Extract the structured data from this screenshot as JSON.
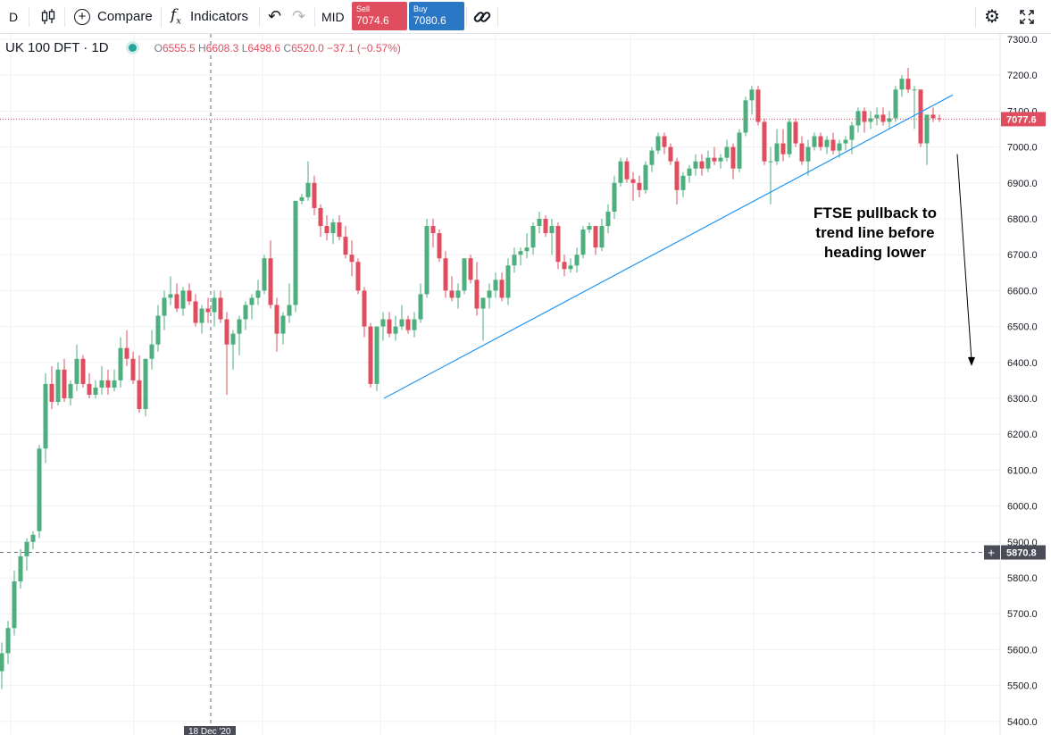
{
  "toolbar": {
    "interval": "D",
    "compare_label": "Compare",
    "indicators_label": "Indicators",
    "mid_label": "MID",
    "sell_label": "Sell",
    "sell_price": "7074.6",
    "buy_label": "Buy",
    "buy_price": "7080.6",
    "icons": [
      "candles-icon",
      "compare-plus-icon",
      "fx-icon",
      "undo-icon",
      "redo-icon",
      "link-icon",
      "settings-icon",
      "fullscreen-icon"
    ]
  },
  "legend": {
    "symbol": "UK 100 DFT · 1D",
    "open_key": "O",
    "open": "6555.5",
    "high_key": "H",
    "high": "6608.3",
    "low_key": "L",
    "low": "6498.6",
    "close_key": "C",
    "close": "6520.0",
    "change": "−37.1 (−0.57%)"
  },
  "annotation": {
    "line1": "FTSE pullback to",
    "line2": "trend line before",
    "line3": "heading lower"
  },
  "colors": {
    "up": "#4caf7d",
    "down": "#e04d5e",
    "trendline": "#2196f3",
    "price_line": "#e04d5e"
  },
  "chart_data": {
    "type": "candlestick",
    "symbol": "UK 100 DFT",
    "interval": "1D",
    "y_ticks": [
      "7300.0",
      "7200.0",
      "7100.0",
      "7000.0",
      "6900.0",
      "6800.0",
      "6700.0",
      "6600.0",
      "6500.0",
      "6400.0",
      "6300.0",
      "6200.0",
      "6100.0",
      "6000.0",
      "5900.0",
      "5800.0",
      "5700.0",
      "5600.0",
      "5500.0",
      "5400.0"
    ],
    "ylim": [
      5400,
      7300
    ],
    "current_price_label": "7077.6",
    "current_price": 7077.6,
    "crosshair_price_label": "5870.8",
    "crosshair_price": 5870.8,
    "crosshair_date_label": "18 Dec '20",
    "candles_ohlc": [
      [
        5540,
        5620,
        5490,
        5590
      ],
      [
        5590,
        5680,
        5560,
        5660
      ],
      [
        5660,
        5820,
        5640,
        5790
      ],
      [
        5790,
        5880,
        5770,
        5860
      ],
      [
        5860,
        5910,
        5820,
        5900
      ],
      [
        5900,
        5930,
        5880,
        5920
      ],
      [
        5930,
        6170,
        5910,
        6160
      ],
      [
        6160,
        6370,
        6120,
        6340
      ],
      [
        6340,
        6390,
        6270,
        6290
      ],
      [
        6290,
        6400,
        6280,
        6380
      ],
      [
        6380,
        6410,
        6290,
        6300
      ],
      [
        6300,
        6350,
        6280,
        6340
      ],
      [
        6340,
        6450,
        6320,
        6410
      ],
      [
        6410,
        6420,
        6330,
        6340
      ],
      [
        6340,
        6370,
        6300,
        6310
      ],
      [
        6310,
        6350,
        6300,
        6330
      ],
      [
        6330,
        6390,
        6310,
        6350
      ],
      [
        6350,
        6380,
        6310,
        6330
      ],
      [
        6330,
        6380,
        6320,
        6350
      ],
      [
        6350,
        6470,
        6330,
        6440
      ],
      [
        6440,
        6490,
        6390,
        6410
      ],
      [
        6410,
        6430,
        6340,
        6350
      ],
      [
        6350,
        6420,
        6260,
        6270
      ],
      [
        6270,
        6410,
        6250,
        6410
      ],
      [
        6410,
        6490,
        6380,
        6450
      ],
      [
        6450,
        6560,
        6430,
        6530
      ],
      [
        6530,
        6600,
        6490,
        6580
      ],
      [
        6580,
        6640,
        6560,
        6590
      ],
      [
        6590,
        6620,
        6540,
        6550
      ],
      [
        6550,
        6610,
        6530,
        6600
      ],
      [
        6600,
        6620,
        6560,
        6570
      ],
      [
        6570,
        6590,
        6500,
        6510
      ],
      [
        6510,
        6560,
        6480,
        6550
      ],
      [
        6550,
        6580,
        6510,
        6540
      ],
      [
        6540,
        6600,
        6500,
        6580
      ],
      [
        6580,
        6600,
        6510,
        6520
      ],
      [
        6520,
        6540,
        6310,
        6450
      ],
      [
        6450,
        6490,
        6380,
        6480
      ],
      [
        6480,
        6530,
        6420,
        6520
      ],
      [
        6520,
        6570,
        6490,
        6560
      ],
      [
        6560,
        6590,
        6520,
        6580
      ],
      [
        6580,
        6630,
        6560,
        6600
      ],
      [
        6600,
        6700,
        6590,
        6690
      ],
      [
        6690,
        6740,
        6550,
        6560
      ],
      [
        6560,
        6580,
        6430,
        6480
      ],
      [
        6480,
        6540,
        6450,
        6530
      ],
      [
        6530,
        6620,
        6510,
        6560
      ],
      [
        6560,
        6850,
        6540,
        6850
      ],
      [
        6850,
        6870,
        6840,
        6860
      ],
      [
        6860,
        6960,
        6850,
        6900
      ],
      [
        6900,
        6920,
        6810,
        6830
      ],
      [
        6830,
        6840,
        6750,
        6780
      ],
      [
        6780,
        6810,
        6740,
        6760
      ],
      [
        6760,
        6800,
        6730,
        6790
      ],
      [
        6790,
        6810,
        6740,
        6750
      ],
      [
        6750,
        6780,
        6690,
        6700
      ],
      [
        6700,
        6740,
        6640,
        6680
      ],
      [
        6680,
        6690,
        6590,
        6600
      ],
      [
        6600,
        6610,
        6470,
        6500
      ],
      [
        6500,
        6510,
        6330,
        6340
      ],
      [
        6340,
        6500,
        6320,
        6500
      ],
      [
        6500,
        6540,
        6460,
        6520
      ],
      [
        6520,
        6540,
        6470,
        6480
      ],
      [
        6480,
        6530,
        6460,
        6500
      ],
      [
        6500,
        6560,
        6490,
        6520
      ],
      [
        6520,
        6530,
        6480,
        6490
      ],
      [
        6490,
        6540,
        6470,
        6520
      ],
      [
        6520,
        6620,
        6510,
        6590
      ],
      [
        6590,
        6800,
        6580,
        6780
      ],
      [
        6780,
        6800,
        6720,
        6760
      ],
      [
        6760,
        6770,
        6680,
        6690
      ],
      [
        6690,
        6710,
        6580,
        6600
      ],
      [
        6600,
        6640,
        6570,
        6580
      ],
      [
        6580,
        6620,
        6550,
        6600
      ],
      [
        6600,
        6690,
        6590,
        6690
      ],
      [
        6690,
        6700,
        6620,
        6630
      ],
      [
        6630,
        6680,
        6530,
        6550
      ],
      [
        6550,
        6560,
        6460,
        6580
      ],
      [
        6580,
        6620,
        6550,
        6600
      ],
      [
        6600,
        6650,
        6580,
        6630
      ],
      [
        6630,
        6650,
        6570,
        6580
      ],
      [
        6580,
        6690,
        6560,
        6670
      ],
      [
        6670,
        6720,
        6650,
        6700
      ],
      [
        6700,
        6720,
        6670,
        6710
      ],
      [
        6710,
        6760,
        6690,
        6720
      ],
      [
        6720,
        6790,
        6700,
        6780
      ],
      [
        6780,
        6820,
        6760,
        6800
      ],
      [
        6800,
        6810,
        6750,
        6760
      ],
      [
        6760,
        6800,
        6700,
        6780
      ],
      [
        6780,
        6790,
        6660,
        6680
      ],
      [
        6680,
        6700,
        6640,
        6660
      ],
      [
        6660,
        6690,
        6650,
        6670
      ],
      [
        6670,
        6720,
        6650,
        6700
      ],
      [
        6700,
        6780,
        6690,
        6770
      ],
      [
        6770,
        6790,
        6760,
        6780
      ],
      [
        6780,
        6780,
        6700,
        6720
      ],
      [
        6720,
        6800,
        6710,
        6780
      ],
      [
        6780,
        6840,
        6760,
        6820
      ],
      [
        6820,
        6920,
        6800,
        6900
      ],
      [
        6900,
        6970,
        6890,
        6960
      ],
      [
        6960,
        6970,
        6900,
        6910
      ],
      [
        6910,
        6930,
        6850,
        6900
      ],
      [
        6900,
        6920,
        6860,
        6880
      ],
      [
        6880,
        6960,
        6870,
        6950
      ],
      [
        6950,
        7000,
        6930,
        6990
      ],
      [
        6990,
        7040,
        6980,
        7030
      ],
      [
        7030,
        7040,
        6980,
        7000
      ],
      [
        7000,
        7010,
        6950,
        6960
      ],
      [
        6960,
        6970,
        6840,
        6880
      ],
      [
        6880,
        6930,
        6860,
        6920
      ],
      [
        6920,
        6950,
        6900,
        6940
      ],
      [
        6940,
        6980,
        6920,
        6960
      ],
      [
        6960,
        6980,
        6920,
        6940
      ],
      [
        6940,
        6990,
        6930,
        6970
      ],
      [
        6970,
        7000,
        6950,
        6960
      ],
      [
        6960,
        6980,
        6940,
        6970
      ],
      [
        6970,
        7020,
        6960,
        7000
      ],
      [
        7000,
        7010,
        6910,
        6940
      ],
      [
        6940,
        7050,
        6930,
        7040
      ],
      [
        7040,
        7140,
        7030,
        7130
      ],
      [
        7130,
        7170,
        7090,
        7160
      ],
      [
        7160,
        7170,
        7060,
        7070
      ],
      [
        7070,
        7080,
        6950,
        6960
      ],
      [
        6960,
        7000,
        6840,
        6960
      ],
      [
        6960,
        7050,
        6950,
        7010
      ],
      [
        7010,
        7050,
        6960,
        6980
      ],
      [
        6980,
        7080,
        6970,
        7070
      ],
      [
        7070,
        7080,
        7000,
        7010
      ],
      [
        7010,
        7030,
        6950,
        6960
      ],
      [
        6960,
        7020,
        6920,
        7000
      ],
      [
        7000,
        7040,
        6990,
        7030
      ],
      [
        7030,
        7040,
        6990,
        7000
      ],
      [
        7000,
        7030,
        6980,
        7020
      ],
      [
        7020,
        7040,
        6980,
        6990
      ],
      [
        6990,
        7020,
        6970,
        7010
      ],
      [
        7010,
        7030,
        6990,
        7020
      ],
      [
        7020,
        7070,
        6980,
        7060
      ],
      [
        7060,
        7110,
        7040,
        7100
      ],
      [
        7100,
        7110,
        7040,
        7070
      ],
      [
        7070,
        7100,
        7050,
        7080
      ],
      [
        7080,
        7110,
        7060,
        7090
      ],
      [
        7090,
        7110,
        7060,
        7070
      ],
      [
        7070,
        7100,
        7050,
        7080
      ],
      [
        7080,
        7170,
        7070,
        7160
      ],
      [
        7160,
        7200,
        7140,
        7190
      ],
      [
        7190,
        7220,
        7150,
        7160
      ],
      [
        7160,
        7170,
        7050,
        7160
      ],
      [
        7160,
        7160,
        7000,
        7010
      ],
      [
        7010,
        7090,
        6950,
        7090
      ],
      [
        7090,
        7110,
        7070,
        7080
      ],
      [
        7080,
        7090,
        7070,
        7078
      ]
    ],
    "trendline": {
      "from": [
        61,
        6300
      ],
      "to": [
        152,
        7145
      ]
    },
    "down_arrow": {
      "from": [
        153,
        6980
      ],
      "to": [
        155,
        6390
      ]
    }
  }
}
